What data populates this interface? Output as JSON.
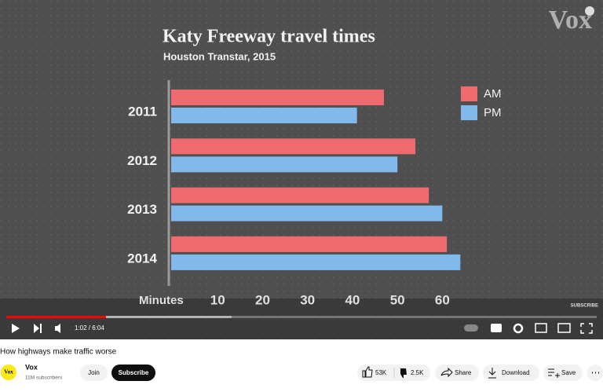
{
  "chart_data": {
    "type": "bar",
    "orientation": "horizontal",
    "title": "Katy Freeway travel times",
    "subtitle": "Houston Transtar, 2015",
    "xlabel": "Minutes",
    "categories": [
      "2011",
      "2012",
      "2013",
      "2014"
    ],
    "series": [
      {
        "name": "AM",
        "color": "#ef6b70",
        "values": [
          47,
          54,
          57,
          61
        ]
      },
      {
        "name": "PM",
        "color": "#80b9ea",
        "values": [
          41,
          50,
          60,
          64
        ]
      }
    ],
    "xlim": [
      0,
      65
    ],
    "xticks": [
      10,
      20,
      30,
      40,
      50,
      60
    ],
    "legend": "upper right"
  },
  "overlay": {
    "watermark": "Vox",
    "subscribe": "SUBSCRIBE"
  },
  "player": {
    "time": "1:02 / 6:04"
  },
  "video": {
    "title": "How highways make traffic worse",
    "channel": "Vox",
    "subscribers": "11M subscribers",
    "join": "Join",
    "subscribe": "Subscribe",
    "likes": "53K",
    "dislikes": "2.5K",
    "share": "Share",
    "download": "Download",
    "save": "Save"
  }
}
